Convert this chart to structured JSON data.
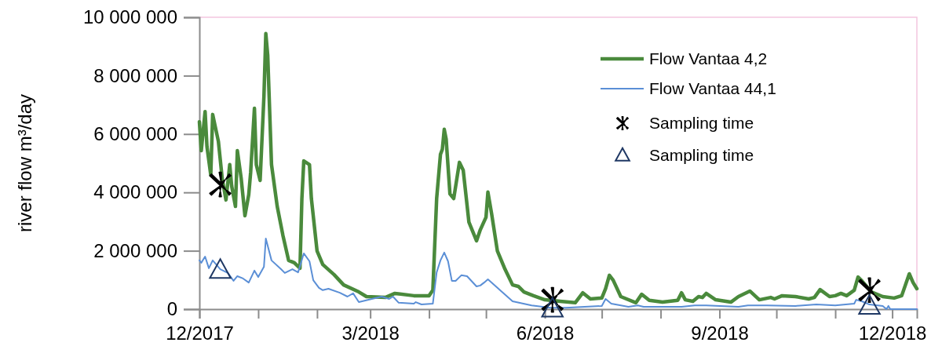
{
  "chart_data": {
    "type": "line",
    "ylabel": "river flow m³/day",
    "xlim": [
      "2017-12-01",
      "2018-12-14"
    ],
    "xticks": [
      {
        "value": "2017-12-01",
        "label": "12/2017"
      },
      {
        "value": "2018-01-01",
        "label": null
      },
      {
        "value": "2018-02-01",
        "label": null
      },
      {
        "value": "2018-03-01",
        "label": "3/2018"
      },
      {
        "value": "2018-04-01",
        "label": null
      },
      {
        "value": "2018-05-01",
        "label": null
      },
      {
        "value": "2018-06-01",
        "label": "6/2018"
      },
      {
        "value": "2018-07-01",
        "label": null
      },
      {
        "value": "2018-08-01",
        "label": null
      },
      {
        "value": "2018-09-01",
        "label": "9/2018"
      },
      {
        "value": "2018-10-01",
        "label": null
      },
      {
        "value": "2018-11-01",
        "label": null
      },
      {
        "value": "2018-12-01",
        "label": "12/2018"
      }
    ],
    "ylim": [
      0,
      10000000
    ],
    "yticks": [
      0,
      {
        "value": 2000000,
        "label": "2 000 000"
      },
      {
        "value": 4000000,
        "label": "4 000 000"
      },
      {
        "value": 6000000,
        "label": "6 000 000"
      },
      {
        "value": 8000000,
        "label": "8 000 000"
      },
      {
        "value": 10000000,
        "label": "10 000 000"
      }
    ],
    "legend": "top right",
    "series": [
      {
        "name": "Flow Vantaa 4,2",
        "type": "line",
        "color": "#4a8a3c",
        "marker": "none",
        "line_style": "solid",
        "x": [
          "2017-12-01",
          "2017-12-02",
          "2017-12-04",
          "2017-12-05",
          "2017-12-07",
          "2017-12-08",
          "2017-12-11",
          "2017-12-13",
          "2017-12-15",
          "2017-12-17",
          "2017-12-18",
          "2017-12-20",
          "2017-12-21",
          "2017-12-23",
          "2017-12-25",
          "2017-12-27",
          "2017-12-28",
          "2017-12-30",
          "2017-12-31",
          "2018-01-02",
          "2018-01-04",
          "2018-01-05",
          "2018-01-06",
          "2018-01-08",
          "2018-01-11",
          "2018-01-14",
          "2018-01-17",
          "2018-01-20",
          "2018-01-23",
          "2018-01-24",
          "2018-01-25",
          "2018-01-28",
          "2018-01-29",
          "2018-02-01",
          "2018-02-04",
          "2018-02-10",
          "2018-02-15",
          "2018-02-23",
          "2018-02-27",
          "2018-03-09",
          "2018-03-14",
          "2018-03-24",
          "2018-04-01",
          "2018-04-03",
          "2018-04-05",
          "2018-04-07",
          "2018-04-08",
          "2018-04-09",
          "2018-04-10",
          "2018-04-12",
          "2018-04-14",
          "2018-04-17",
          "2018-04-19",
          "2018-04-22",
          "2018-04-26",
          "2018-04-28",
          "2018-05-01",
          "2018-05-02",
          "2018-05-04",
          "2018-05-07",
          "2018-05-11",
          "2018-05-15",
          "2018-05-18",
          "2018-05-21",
          "2018-05-26",
          "2018-06-01",
          "2018-06-09",
          "2018-06-17",
          "2018-06-21",
          "2018-06-25",
          "2018-07-01",
          "2018-07-03",
          "2018-07-05",
          "2018-07-07",
          "2018-07-11",
          "2018-07-19",
          "2018-07-22",
          "2018-07-26",
          "2018-08-02",
          "2018-08-10",
          "2018-08-12",
          "2018-08-14",
          "2018-08-18",
          "2018-08-21",
          "2018-08-23",
          "2018-08-25",
          "2018-08-30",
          "2018-09-07",
          "2018-09-11",
          "2018-09-17",
          "2018-09-22",
          "2018-09-28",
          "2018-09-30",
          "2018-10-04",
          "2018-10-11",
          "2018-10-18",
          "2018-10-21",
          "2018-10-24",
          "2018-10-29",
          "2018-11-01",
          "2018-11-04",
          "2018-11-07",
          "2018-11-11",
          "2018-11-13",
          "2018-11-15",
          "2018-11-20",
          "2018-11-26",
          "2018-12-02",
          "2018-12-06",
          "2018-12-10",
          "2018-12-12",
          "2018-12-14"
        ],
        "values": [
          6420000,
          5430000,
          6770000,
          5560000,
          4600000,
          6670000,
          5750000,
          4490000,
          3740000,
          4950000,
          4220000,
          3520000,
          5430000,
          4490000,
          3200000,
          3920000,
          4680000,
          6880000,
          4950000,
          4410000,
          7280000,
          9440000,
          8700000,
          4950000,
          3520000,
          2530000,
          1670000,
          1590000,
          1400000,
          3790000,
          5080000,
          4950000,
          3790000,
          1990000,
          1530000,
          1180000,
          830000,
          590000,
          430000,
          400000,
          540000,
          460000,
          460000,
          650000,
          3790000,
          5300000,
          5480000,
          6160000,
          5830000,
          3950000,
          3790000,
          5030000,
          4760000,
          2980000,
          2340000,
          2720000,
          3150000,
          4010000,
          3250000,
          1990000,
          1370000,
          830000,
          780000,
          590000,
          460000,
          320000,
          270000,
          220000,
          560000,
          350000,
          380000,
          700000,
          1160000,
          990000,
          430000,
          220000,
          510000,
          300000,
          240000,
          300000,
          560000,
          320000,
          270000,
          430000,
          400000,
          540000,
          320000,
          240000,
          430000,
          620000,
          320000,
          400000,
          350000,
          460000,
          430000,
          350000,
          400000,
          670000,
          430000,
          460000,
          540000,
          460000,
          650000,
          1100000,
          970000,
          590000,
          430000,
          380000,
          460000,
          1210000,
          910000,
          700000
        ]
      },
      {
        "name": "Flow Vantaa 44,1",
        "type": "line",
        "color": "#5b8fd6",
        "marker": "none",
        "line_style": "solid",
        "x": [
          "2017-12-01",
          "2017-12-02",
          "2017-12-04",
          "2017-12-06",
          "2017-12-08",
          "2017-12-12",
          "2017-12-16",
          "2017-12-19",
          "2017-12-21",
          "2017-12-24",
          "2017-12-27",
          "2017-12-30",
          "2018-01-01",
          "2018-01-04",
          "2018-01-05",
          "2018-01-08",
          "2018-01-13",
          "2018-01-15",
          "2018-01-19",
          "2018-01-22",
          "2018-01-25",
          "2018-01-28",
          "2018-01-30",
          "2018-02-02",
          "2018-02-04",
          "2018-02-07",
          "2018-02-13",
          "2018-02-17",
          "2018-02-20",
          "2018-02-23",
          "2018-03-07",
          "2018-03-11",
          "2018-03-13",
          "2018-03-16",
          "2018-03-24",
          "2018-03-25",
          "2018-03-28",
          "2018-04-03",
          "2018-04-05",
          "2018-04-07",
          "2018-04-09",
          "2018-04-11",
          "2018-04-13",
          "2018-04-15",
          "2018-04-18",
          "2018-04-21",
          "2018-04-26",
          "2018-04-28",
          "2018-04-30",
          "2018-05-02",
          "2018-05-04",
          "2018-05-10",
          "2018-05-15",
          "2018-05-25",
          "2018-06-04",
          "2018-06-12",
          "2018-07-01",
          "2018-07-03",
          "2018-07-06",
          "2018-07-15",
          "2018-07-20",
          "2018-07-23",
          "2018-08-12",
          "2018-08-19",
          "2018-08-25",
          "2018-09-11",
          "2018-09-16",
          "2018-09-26",
          "2018-10-11",
          "2018-10-22",
          "2018-11-01",
          "2018-11-11",
          "2018-11-12",
          "2018-11-15",
          "2018-11-19",
          "2018-11-26",
          "2018-11-28",
          "2018-11-29",
          "2018-11-30",
          "2018-12-14"
        ],
        "values": [
          1670000,
          1590000,
          1800000,
          1400000,
          1670000,
          1370000,
          1240000,
          970000,
          1130000,
          1050000,
          910000,
          1320000,
          1100000,
          1450000,
          2420000,
          1670000,
          1370000,
          1240000,
          1370000,
          1260000,
          1910000,
          1640000,
          990000,
          730000,
          650000,
          700000,
          560000,
          430000,
          540000,
          240000,
          430000,
          350000,
          430000,
          220000,
          190000,
          240000,
          160000,
          190000,
          1260000,
          1670000,
          1940000,
          1640000,
          970000,
          970000,
          1160000,
          1130000,
          780000,
          810000,
          910000,
          1020000,
          910000,
          560000,
          270000,
          130000,
          50000,
          50000,
          110000,
          350000,
          190000,
          80000,
          130000,
          80000,
          80000,
          130000,
          130000,
          80000,
          130000,
          130000,
          110000,
          160000,
          130000,
          190000,
          320000,
          270000,
          160000,
          110000,
          0,
          110000,
          0,
          0
        ]
      },
      {
        "name": "Sampling time",
        "type": "scatter",
        "color": "#000000",
        "marker": "star",
        "x": [
          "2017-12-12",
          "2018-06-05",
          "2018-11-19"
        ],
        "values": [
          4270000,
          320000,
          650000
        ]
      },
      {
        "name": "Sampling time",
        "type": "scatter",
        "color": "#1f3864",
        "marker": "triangle",
        "x": [
          "2017-12-12",
          "2018-06-05",
          "2018-11-19"
        ],
        "values": [
          1340000,
          20000,
          110000
        ]
      }
    ]
  }
}
